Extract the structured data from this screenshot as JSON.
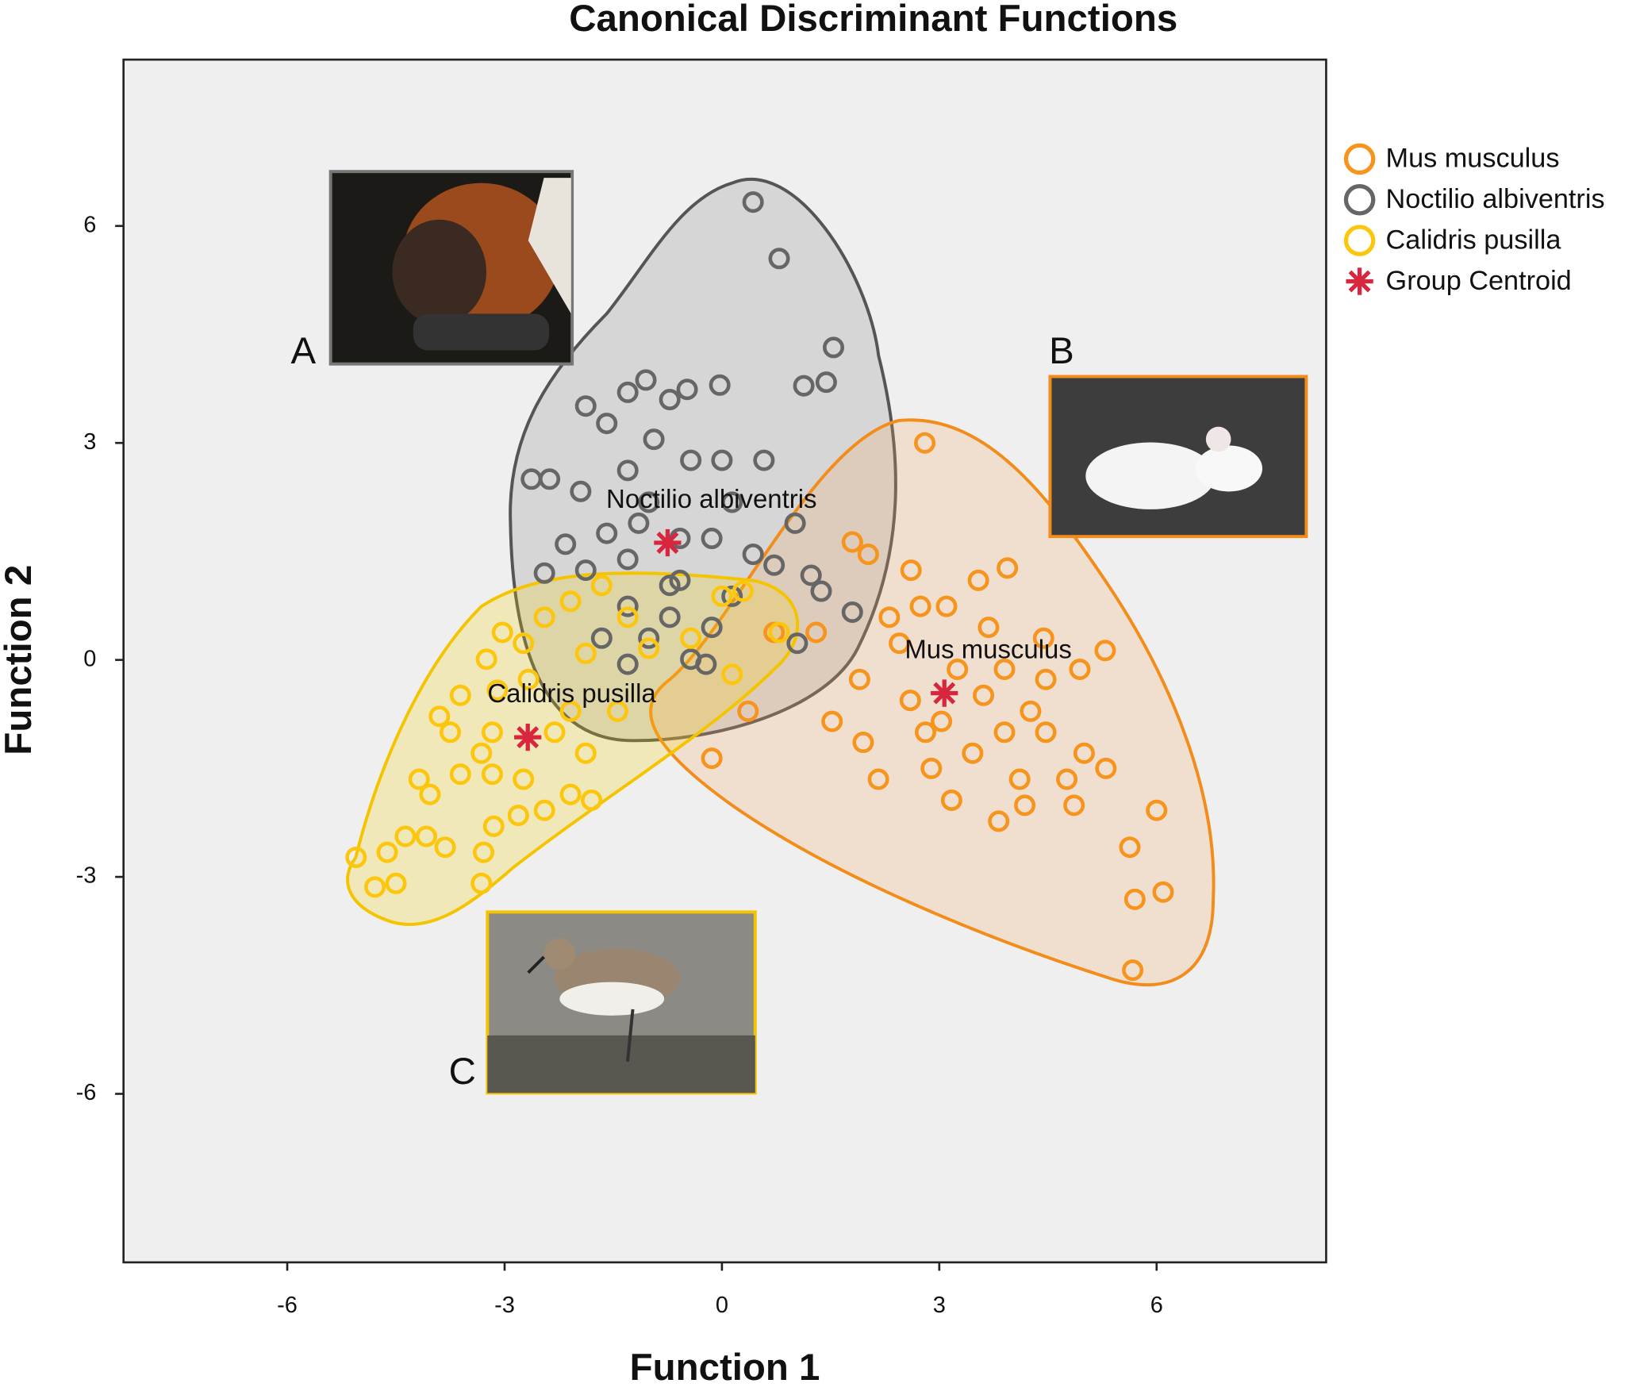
{
  "chart_data": {
    "type": "scatter",
    "title": "Canonical Discriminant Functions",
    "xlabel": "Function 1",
    "ylabel": "Function 2",
    "xlim": [
      -8.26,
      8.34
    ],
    "ylim": [
      -8.33,
      8.3
    ],
    "xticks": [
      -6,
      -3,
      0,
      3,
      6
    ],
    "yticks": [
      -6,
      -3,
      0,
      3,
      6
    ],
    "grid": false,
    "legend": "right",
    "series": [
      {
        "name": "Mus musculus",
        "color": "#f7941d",
        "marker": "circle",
        "x": [
          2.8,
          3.94,
          1.8,
          2.02,
          2.61,
          3.1,
          3.54,
          2.74,
          3.68,
          5.29,
          4.94,
          4.44,
          2.45,
          1.3,
          0.72,
          1.9,
          2.6,
          3.61,
          4.26,
          4.47,
          3.9,
          2.81,
          1.95,
          1.52,
          0.36,
          -0.14,
          2.16,
          2.89,
          3.46,
          4.11,
          4.76,
          5.3,
          5.0,
          3.17,
          3.82,
          4.18,
          4.86,
          6.0,
          5.63,
          5.7,
          6.09,
          5.67,
          3.25,
          3.9,
          2.31,
          3.03,
          4.47
        ],
        "y": [
          3.0,
          1.27,
          1.63,
          1.46,
          1.24,
          0.74,
          1.1,
          0.74,
          0.45,
          0.13,
          -0.13,
          0.3,
          0.23,
          0.38,
          0.38,
          -0.27,
          -0.56,
          -0.49,
          -0.71,
          -1.0,
          -1.0,
          -1.0,
          -1.14,
          -0.85,
          -0.71,
          -1.36,
          -1.65,
          -1.5,
          -1.29,
          -1.65,
          -1.65,
          -1.5,
          -1.29,
          -1.94,
          -2.23,
          -2.01,
          -2.01,
          -2.08,
          -2.59,
          -3.31,
          -3.21,
          -4.29,
          -0.13,
          -0.13,
          0.59,
          -0.85,
          -0.27
        ]
      },
      {
        "name": "Noctilio albiventris",
        "color": "#666666",
        "marker": "circle",
        "x": [
          0.43,
          0.79,
          1.54,
          1.44,
          1.13,
          -0.03,
          -1.05,
          -1.3,
          -1.88,
          -0.48,
          -0.72,
          -1.59,
          -0.94,
          -0.43,
          0.0,
          0.58,
          -2.63,
          -2.38,
          -1.3,
          -1.95,
          -1.01,
          0.14,
          1.01,
          -2.16,
          -1.59,
          -0.14,
          -1.3,
          0.43,
          0.72,
          -2.45,
          -1.88,
          -0.58,
          1.23,
          1.37,
          0.14,
          -1.3,
          -0.72,
          -1.66,
          -1.01,
          -0.14,
          1.04,
          1.8,
          -0.43,
          -1.3,
          -0.22,
          -0.72,
          -1.15,
          -0.58
        ],
        "y": [
          6.33,
          5.55,
          4.32,
          3.84,
          3.79,
          3.8,
          3.87,
          3.7,
          3.51,
          3.74,
          3.6,
          3.27,
          3.05,
          2.76,
          2.76,
          2.76,
          2.5,
          2.5,
          2.62,
          2.33,
          2.18,
          2.18,
          1.89,
          1.6,
          1.75,
          1.68,
          1.39,
          1.46,
          1.31,
          1.2,
          1.24,
          1.1,
          1.17,
          0.95,
          0.88,
          0.74,
          0.59,
          0.3,
          0.3,
          0.45,
          0.23,
          0.66,
          0.01,
          -0.06,
          -0.06,
          1.03,
          1.89,
          1.68
        ]
      },
      {
        "name": "Calidris pusilla",
        "color": "#fcc60d",
        "marker": "circle",
        "x": [
          -4.79,
          -4.5,
          -5.05,
          -4.62,
          -4.37,
          -4.08,
          -3.82,
          -3.32,
          -3.29,
          -3.15,
          -2.81,
          -2.45,
          -2.09,
          -1.8,
          -4.18,
          -4.03,
          -3.61,
          -3.17,
          -2.74,
          -3.75,
          -3.32,
          -3.17,
          -3.9,
          -3.61,
          -3.1,
          -2.31,
          -1.88,
          -2.09,
          -1.44,
          -3.25,
          -2.74,
          -3.03,
          -2.45,
          -2.09,
          -1.66,
          -1.3,
          -1.88,
          -1.01,
          -0.43,
          0.0,
          0.29,
          0.79,
          0.14,
          -2.67
        ],
        "y": [
          -3.14,
          -3.09,
          -2.73,
          -2.66,
          -2.44,
          -2.44,
          -2.59,
          -3.09,
          -2.66,
          -2.3,
          -2.15,
          -2.08,
          -1.86,
          -1.94,
          -1.65,
          -1.86,
          -1.58,
          -1.58,
          -1.65,
          -1.0,
          -1.29,
          -1.0,
          -0.78,
          -0.49,
          -0.42,
          -1.0,
          -1.29,
          -0.71,
          -0.71,
          0.01,
          0.23,
          0.38,
          0.59,
          0.81,
          1.03,
          0.59,
          0.09,
          0.16,
          0.3,
          0.88,
          0.95,
          0.38,
          -0.2,
          -0.27
        ]
      },
      {
        "name": "Group Centroid",
        "color": "#d7263d",
        "marker": "star",
        "x": [
          3.07,
          -0.75,
          -2.68
        ],
        "y": [
          -0.46,
          1.62,
          -1.07
        ]
      }
    ],
    "centroid_labels": [
      "Mus musculus",
      "Noctilio albiventris",
      "Calidris pusilla"
    ],
    "image_labels": [
      "A",
      "B",
      "C"
    ]
  }
}
